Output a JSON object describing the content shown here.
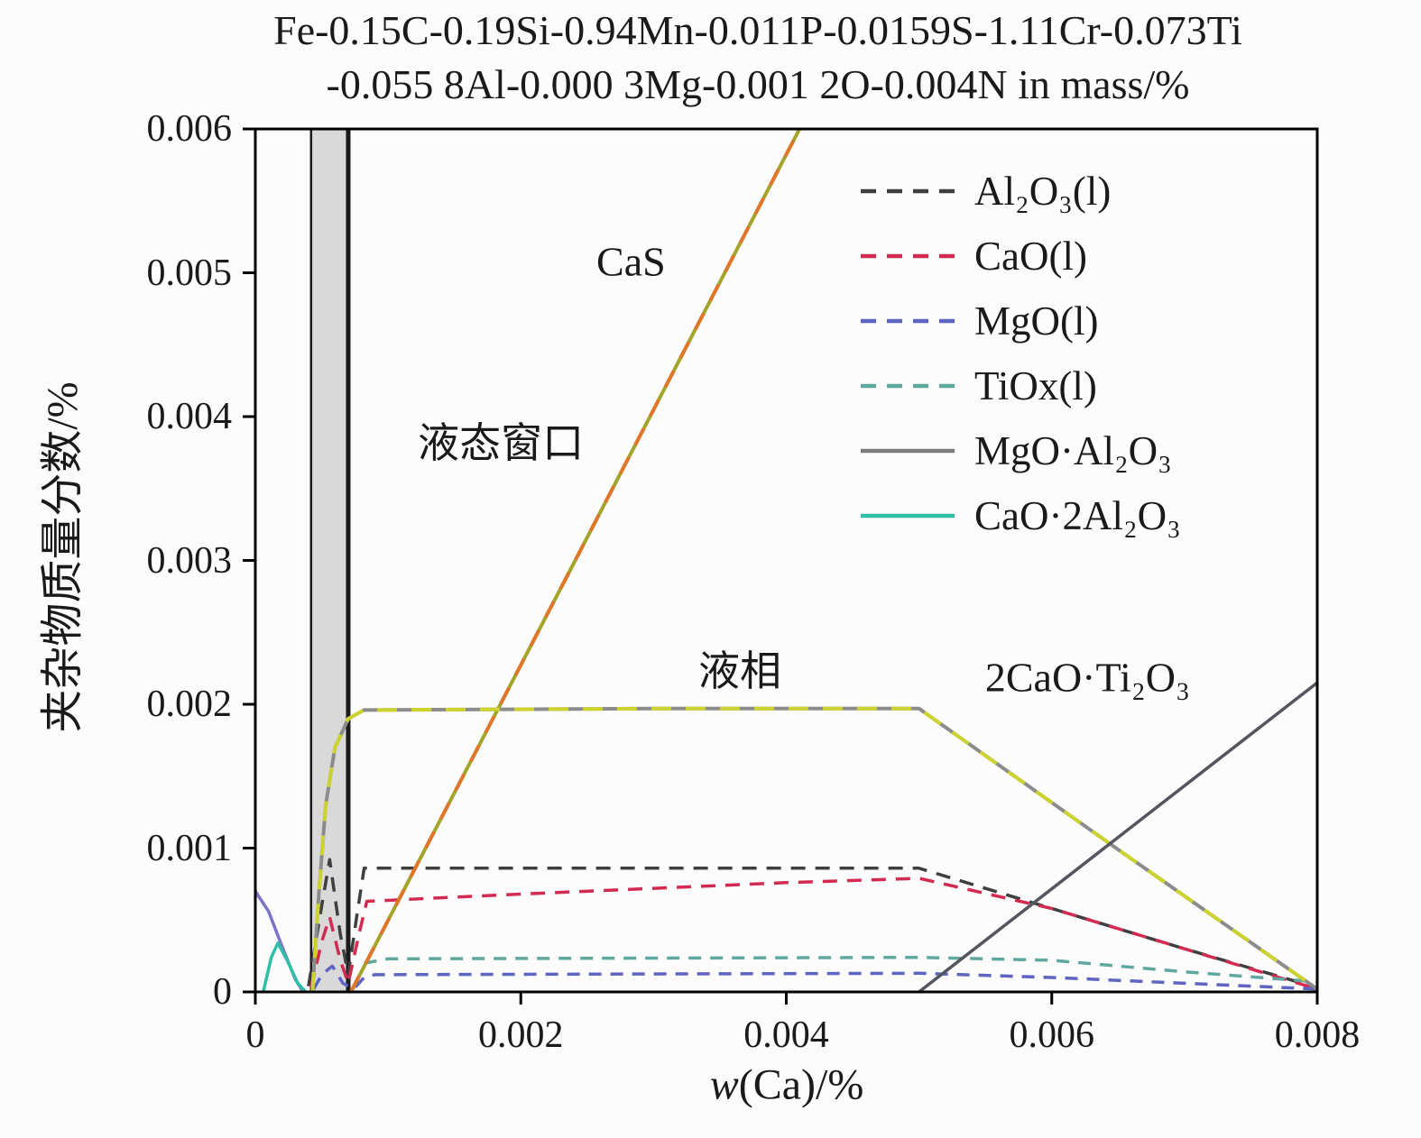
{
  "title": {
    "line1": "Fe-0.15C-0.19Si-0.94Mn-0.011P-0.0159S-1.11Cr-0.073Ti",
    "line2": "-0.055 8Al-0.000 3Mg-0.001 2O-0.004N in mass/%"
  },
  "chart_data": {
    "type": "line",
    "title": "Fe-0.15C-0.19Si-0.94Mn-0.011P-0.0159S-1.11Cr-0.073Ti-0.055 8Al-0.000 3Mg-0.001 2O-0.004N in mass/%",
    "xlabel": "w(Ca)/%",
    "xlabel_w": "w",
    "xlabel_rest": "(Ca)/%",
    "ylabel": "夹杂物质量分数/%",
    "xlim": [
      0,
      0.008
    ],
    "ylim": [
      0,
      0.006
    ],
    "grid": false,
    "legend_position": "upper right",
    "x_ticks": {
      "values": [
        0,
        0.002,
        0.004,
        0.006,
        0.008
      ],
      "labels": [
        "0",
        "0.002",
        "0.004",
        "0.006",
        "0.008"
      ]
    },
    "y_ticks": {
      "values": [
        0,
        0.001,
        0.002,
        0.003,
        0.004,
        0.005,
        0.006
      ],
      "labels": [
        "0",
        "0.001",
        "0.002",
        "0.003",
        "0.004",
        "0.005",
        "0.006"
      ]
    },
    "liquid_window_band": {
      "label": "液态窗口",
      "x1": 0.00042,
      "x2": 0.0007,
      "fill": "#d9d9d9",
      "border": "#1a1a1a"
    },
    "legend": [
      {
        "label": "Al₂O₃(l)",
        "color": "#3f3f3f",
        "dash": true
      },
      {
        "label": "CaO(l)",
        "color": "#d22a50",
        "dash": true
      },
      {
        "label": "MgO(l)",
        "color": "#5f63c2",
        "dash": true
      },
      {
        "label": "TiOx(l)",
        "color": "#5fa89e",
        "dash": true
      },
      {
        "label": "MgO·Al₂O₃",
        "color": "#7d7d7d",
        "dash": false
      },
      {
        "label": "CaO·2Al₂O₃",
        "color": "#2fbfa5",
        "dash": false
      }
    ],
    "annotations": [
      {
        "label": "CaS",
        "x": 0.00283,
        "y": 0.00508
      },
      {
        "label": "液态窗口",
        "x": 0.00185,
        "y": 0.00384
      },
      {
        "label": "液相",
        "x": 0.00365,
        "y": 0.00225
      },
      {
        "label": "2CaO·Ti₂O₃",
        "x": 0.00627,
        "y": 0.00219
      }
    ],
    "series": [
      {
        "id": "Al2O3-l",
        "name": "Al₂O₃(l)",
        "color": "#3f3f3f",
        "dash": [
          16,
          11
        ],
        "width": 3.5,
        "points": [
          [
            0.0004,
            4e-05
          ],
          [
            0.0005,
            0.0006
          ],
          [
            0.00056,
            0.00092
          ],
          [
            0.00064,
            0.0004
          ],
          [
            0.0007,
            0.00012
          ],
          [
            0.00076,
            0.0005
          ],
          [
            0.00082,
            0.00086
          ],
          [
            0.002,
            0.00086
          ],
          [
            0.005,
            0.00086
          ],
          [
            0.006,
            0.00058
          ],
          [
            0.007,
            0.0003
          ],
          [
            0.008,
            3e-05
          ]
        ]
      },
      {
        "id": "CaO-l",
        "name": "CaO(l)",
        "color": "#d22a50",
        "dash": [
          16,
          11
        ],
        "width": 3.5,
        "points": [
          [
            0.00042,
            3e-05
          ],
          [
            0.0005,
            0.00035
          ],
          [
            0.00056,
            0.00052
          ],
          [
            0.00064,
            0.00022
          ],
          [
            0.0007,
            6e-05
          ],
          [
            0.00078,
            0.0004
          ],
          [
            0.00084,
            0.00063
          ],
          [
            0.002,
            0.00068
          ],
          [
            0.004,
            0.00076
          ],
          [
            0.005,
            0.00079
          ],
          [
            0.006,
            0.00058
          ],
          [
            0.007,
            0.0003
          ],
          [
            0.008,
            2e-05
          ]
        ]
      },
      {
        "id": "MgO-l",
        "name": "MgO(l)",
        "color": "#5f63c2",
        "dash": [
          14,
          10
        ],
        "width": 3.5,
        "points": [
          [
            0.00044,
            2e-05
          ],
          [
            0.0005,
            0.00012
          ],
          [
            0.00058,
            0.00018
          ],
          [
            0.00066,
            6e-05
          ],
          [
            0.00074,
            2e-05
          ],
          [
            0.00082,
            0.0001
          ],
          [
            0.0009,
            0.00012
          ],
          [
            0.005,
            0.00013
          ],
          [
            0.006,
            0.0001
          ],
          [
            0.007,
            6e-05
          ],
          [
            0.008,
            2e-05
          ]
        ]
      },
      {
        "id": "TiOx-l",
        "name": "TiOx(l)",
        "color": "#5fa89e",
        "dash": [
          14,
          10
        ],
        "width": 3.5,
        "points": [
          [
            0.00082,
            0.0002
          ],
          [
            0.001,
            0.00023
          ],
          [
            0.005,
            0.00024
          ],
          [
            0.006,
            0.00022
          ],
          [
            0.007,
            0.00014
          ],
          [
            0.008,
            7e-05
          ]
        ]
      },
      {
        "id": "MgO-Al2O3",
        "name": "MgO·Al₂O₃",
        "color": "#7b74c8",
        "width": 3.5,
        "points": [
          [
            0.0,
            0.0007
          ],
          [
            0.0001,
            0.00056
          ],
          [
            0.0002,
            0.00032
          ],
          [
            0.0003,
            9e-05
          ],
          [
            0.00036,
            0.0
          ]
        ]
      },
      {
        "id": "CaO-2Al2O3",
        "name": "CaO·2Al₂O₃",
        "color": "#2fbfa5",
        "width": 3.5,
        "points": [
          [
            6e-05,
            0.0
          ],
          [
            0.00012,
            0.00024
          ],
          [
            0.00017,
            0.00034
          ],
          [
            0.00024,
            0.00022
          ],
          [
            0.00032,
            6e-05
          ],
          [
            0.00038,
            0.0
          ]
        ]
      },
      {
        "id": "CaS",
        "name": "CaS",
        "color": "#a4a42b",
        "width": 4,
        "overlay": "#e0762a",
        "overlay_dash": [
          20,
          16
        ],
        "points": [
          [
            0.00072,
            0.0
          ],
          [
            0.0041,
            0.006
          ]
        ]
      },
      {
        "id": "liquid-phase",
        "name": "液相",
        "color": "#8c8c8c",
        "width": 4,
        "overlay": "#cdd32e",
        "overlay_dash": [
          22,
          16
        ],
        "points": [
          [
            0.00043,
            0.0
          ],
          [
            0.00048,
            0.0007
          ],
          [
            0.00053,
            0.0013
          ],
          [
            0.0006,
            0.0017
          ],
          [
            0.0007,
            0.0019
          ],
          [
            0.00082,
            0.00196
          ],
          [
            0.003,
            0.00197
          ],
          [
            0.005,
            0.00197
          ],
          [
            0.0065,
            0.00099
          ],
          [
            0.008,
            2e-05
          ]
        ]
      },
      {
        "id": "2CaO-Ti2O3",
        "name": "2CaO·Ti₂O₃",
        "color": "#55555f",
        "width": 3.5,
        "points": [
          [
            0.005,
            0.0
          ],
          [
            0.008,
            0.00215
          ]
        ]
      }
    ]
  }
}
